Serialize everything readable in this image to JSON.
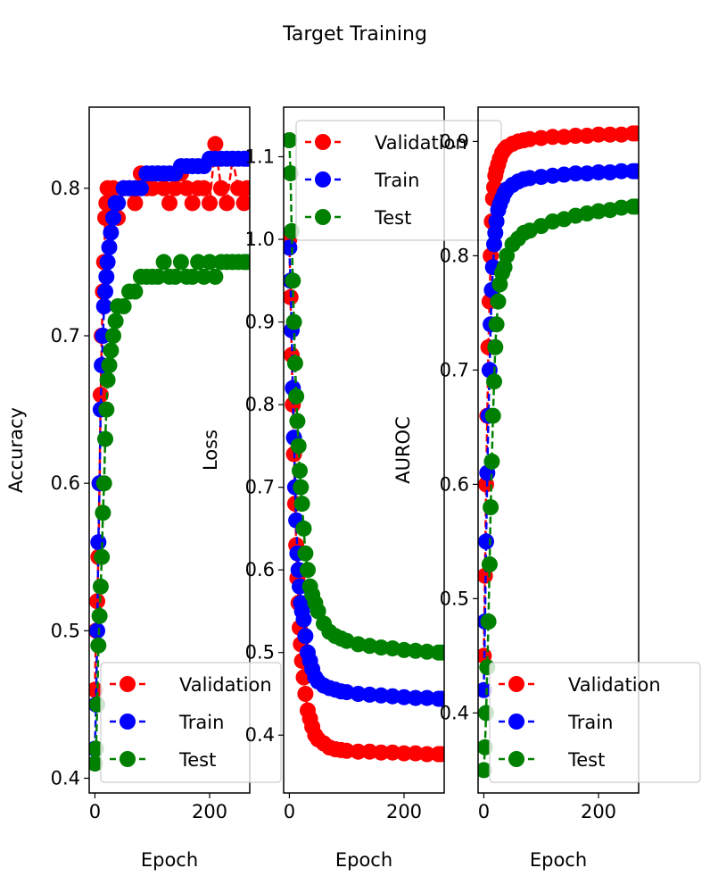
{
  "figure": {
    "title": "Target Training"
  },
  "colors": {
    "validation": "#ff0000",
    "train": "#0000ff",
    "test": "#008000"
  },
  "chart_data": [
    {
      "type": "line",
      "xlabel": "Epoch",
      "ylabel": "Accuracy",
      "xlim": [
        -10,
        270
      ],
      "ylim": [
        0.39,
        0.855
      ],
      "xticks": [
        0,
        200
      ],
      "yticks": [
        0.4,
        0.5,
        0.6,
        0.7,
        0.8
      ],
      "grid": false,
      "legend": "bottom-right",
      "series": [
        {
          "name": "Validation",
          "color": "#ff0000",
          "marker": "o",
          "linestyle": "dashed",
          "x": [
            0,
            2,
            4,
            6,
            8,
            10,
            12,
            14,
            16,
            18,
            20,
            22,
            25,
            28,
            32,
            36,
            40,
            50,
            60,
            70,
            80,
            90,
            100,
            110,
            120,
            130,
            140,
            150,
            160,
            170,
            180,
            190,
            200,
            210,
            220,
            230,
            240,
            250,
            260,
            265
          ],
          "y": [
            0.46,
            0.5,
            0.52,
            0.55,
            0.6,
            0.66,
            0.7,
            0.73,
            0.75,
            0.78,
            0.79,
            0.8,
            0.78,
            0.79,
            0.8,
            0.79,
            0.78,
            0.8,
            0.8,
            0.79,
            0.81,
            0.8,
            0.8,
            0.81,
            0.8,
            0.79,
            0.8,
            0.81,
            0.8,
            0.79,
            0.8,
            0.8,
            0.79,
            0.83,
            0.8,
            0.79,
            0.82,
            0.8,
            0.79,
            0.8
          ]
        },
        {
          "name": "Train",
          "color": "#0000ff",
          "marker": "o",
          "linestyle": "dashed",
          "x": [
            0,
            2,
            4,
            6,
            8,
            10,
            12,
            14,
            16,
            18,
            20,
            22,
            25,
            28,
            32,
            36,
            40,
            50,
            60,
            70,
            80,
            90,
            100,
            110,
            120,
            130,
            140,
            150,
            160,
            170,
            180,
            190,
            200,
            210,
            220,
            230,
            240,
            250,
            260,
            265
          ],
          "y": [
            0.42,
            0.45,
            0.5,
            0.56,
            0.6,
            0.65,
            0.68,
            0.7,
            0.72,
            0.73,
            0.74,
            0.75,
            0.76,
            0.77,
            0.78,
            0.79,
            0.79,
            0.8,
            0.8,
            0.8,
            0.8,
            0.81,
            0.81,
            0.81,
            0.81,
            0.81,
            0.81,
            0.815,
            0.815,
            0.815,
            0.815,
            0.815,
            0.82,
            0.82,
            0.82,
            0.82,
            0.82,
            0.82,
            0.82,
            0.82
          ]
        },
        {
          "name": "Test",
          "color": "#008000",
          "marker": "o",
          "linestyle": "dashed",
          "x": [
            0,
            2,
            4,
            6,
            8,
            10,
            12,
            14,
            16,
            18,
            20,
            22,
            25,
            28,
            32,
            36,
            40,
            50,
            60,
            70,
            80,
            90,
            100,
            110,
            120,
            130,
            140,
            150,
            160,
            170,
            180,
            190,
            200,
            210,
            220,
            230,
            240,
            250,
            260,
            265
          ],
          "y": [
            0.41,
            0.42,
            0.45,
            0.49,
            0.51,
            0.53,
            0.55,
            0.58,
            0.6,
            0.63,
            0.65,
            0.67,
            0.68,
            0.69,
            0.7,
            0.71,
            0.72,
            0.72,
            0.73,
            0.73,
            0.74,
            0.74,
            0.74,
            0.74,
            0.75,
            0.74,
            0.74,
            0.75,
            0.74,
            0.74,
            0.75,
            0.74,
            0.75,
            0.74,
            0.75,
            0.75,
            0.75,
            0.75,
            0.75,
            0.75
          ]
        }
      ]
    },
    {
      "type": "line",
      "xlabel": "Epoch",
      "ylabel": "Loss",
      "xlim": [
        -10,
        270
      ],
      "ylim": [
        0.33,
        1.16
      ],
      "xticks": [
        0,
        200
      ],
      "yticks": [
        0.4,
        0.5,
        0.6,
        0.7,
        0.8,
        0.9,
        1.0,
        1.1
      ],
      "grid": false,
      "legend": "top-right",
      "series": [
        {
          "name": "Validation",
          "color": "#ff0000",
          "marker": "o",
          "linestyle": "dashed",
          "x": [
            0,
            2,
            4,
            6,
            8,
            10,
            12,
            14,
            16,
            18,
            20,
            22,
            25,
            28,
            32,
            36,
            40,
            45,
            50,
            60,
            70,
            80,
            90,
            100,
            120,
            140,
            160,
            180,
            200,
            220,
            240,
            260,
            265
          ],
          "y": [
            1.0,
            0.93,
            0.86,
            0.8,
            0.74,
            0.68,
            0.63,
            0.59,
            0.56,
            0.53,
            0.51,
            0.49,
            0.47,
            0.45,
            0.43,
            0.42,
            0.41,
            0.4,
            0.395,
            0.39,
            0.385,
            0.383,
            0.382,
            0.381,
            0.38,
            0.38,
            0.379,
            0.379,
            0.378,
            0.378,
            0.377,
            0.377,
            0.377
          ]
        },
        {
          "name": "Train",
          "color": "#0000ff",
          "marker": "o",
          "linestyle": "dashed",
          "x": [
            0,
            2,
            4,
            6,
            8,
            10,
            12,
            14,
            16,
            18,
            20,
            22,
            25,
            28,
            32,
            36,
            40,
            45,
            50,
            60,
            70,
            80,
            90,
            100,
            120,
            140,
            160,
            180,
            200,
            220,
            240,
            260,
            265
          ],
          "y": [
            0.99,
            0.95,
            0.89,
            0.82,
            0.76,
            0.7,
            0.66,
            0.62,
            0.6,
            0.58,
            0.56,
            0.55,
            0.54,
            0.52,
            0.5,
            0.49,
            0.48,
            0.47,
            0.465,
            0.46,
            0.457,
            0.455,
            0.453,
            0.452,
            0.45,
            0.449,
            0.448,
            0.447,
            0.446,
            0.445,
            0.445,
            0.444,
            0.444
          ]
        },
        {
          "name": "Test",
          "color": "#008000",
          "marker": "o",
          "linestyle": "dashed",
          "x": [
            0,
            2,
            4,
            6,
            8,
            10,
            12,
            14,
            16,
            18,
            20,
            22,
            25,
            28,
            32,
            36,
            40,
            45,
            50,
            60,
            70,
            80,
            90,
            100,
            120,
            140,
            160,
            180,
            200,
            220,
            240,
            260,
            265
          ],
          "y": [
            1.12,
            1.08,
            1.01,
            0.95,
            0.9,
            0.85,
            0.81,
            0.78,
            0.75,
            0.72,
            0.7,
            0.68,
            0.65,
            0.62,
            0.6,
            0.58,
            0.57,
            0.56,
            0.55,
            0.535,
            0.525,
            0.52,
            0.517,
            0.514,
            0.51,
            0.508,
            0.506,
            0.505,
            0.503,
            0.502,
            0.501,
            0.5,
            0.5
          ]
        }
      ]
    },
    {
      "type": "line",
      "xlabel": "Epoch",
      "ylabel": "AUROC",
      "xlim": [
        -10,
        270
      ],
      "ylim": [
        0.33,
        0.93
      ],
      "xticks": [
        0,
        200
      ],
      "yticks": [
        0.4,
        0.5,
        0.6,
        0.7,
        0.8,
        0.9
      ],
      "grid": false,
      "legend": "bottom-right",
      "series": [
        {
          "name": "Validation",
          "color": "#ff0000",
          "marker": "o",
          "linestyle": "dashed",
          "x": [
            0,
            2,
            4,
            6,
            8,
            10,
            12,
            14,
            16,
            18,
            20,
            22,
            25,
            28,
            32,
            36,
            40,
            50,
            60,
            70,
            80,
            100,
            120,
            140,
            160,
            180,
            200,
            220,
            240,
            260,
            265
          ],
          "y": [
            0.45,
            0.52,
            0.6,
            0.66,
            0.72,
            0.76,
            0.8,
            0.83,
            0.85,
            0.86,
            0.87,
            0.875,
            0.88,
            0.885,
            0.89,
            0.893,
            0.895,
            0.898,
            0.9,
            0.901,
            0.902,
            0.903,
            0.904,
            0.904,
            0.905,
            0.905,
            0.906,
            0.906,
            0.906,
            0.907,
            0.907
          ]
        },
        {
          "name": "Train",
          "color": "#0000ff",
          "marker": "o",
          "linestyle": "dashed",
          "x": [
            0,
            2,
            4,
            6,
            8,
            10,
            12,
            14,
            16,
            18,
            20,
            22,
            25,
            28,
            32,
            36,
            40,
            50,
            60,
            70,
            80,
            100,
            120,
            140,
            160,
            180,
            200,
            220,
            240,
            260,
            265
          ],
          "y": [
            0.42,
            0.48,
            0.55,
            0.61,
            0.66,
            0.7,
            0.74,
            0.77,
            0.79,
            0.81,
            0.82,
            0.83,
            0.84,
            0.845,
            0.85,
            0.855,
            0.858,
            0.862,
            0.865,
            0.867,
            0.868,
            0.869,
            0.87,
            0.871,
            0.872,
            0.872,
            0.873,
            0.873,
            0.874,
            0.874,
            0.874
          ]
        },
        {
          "name": "Test",
          "color": "#008000",
          "marker": "o",
          "linestyle": "dashed",
          "x": [
            0,
            2,
            4,
            6,
            8,
            10,
            12,
            14,
            16,
            18,
            20,
            22,
            25,
            28,
            32,
            36,
            40,
            50,
            60,
            70,
            80,
            100,
            120,
            140,
            160,
            180,
            200,
            220,
            240,
            260,
            265
          ],
          "y": [
            0.35,
            0.37,
            0.4,
            0.44,
            0.48,
            0.53,
            0.58,
            0.62,
            0.66,
            0.69,
            0.72,
            0.74,
            0.76,
            0.775,
            0.785,
            0.79,
            0.8,
            0.81,
            0.815,
            0.82,
            0.822,
            0.826,
            0.83,
            0.832,
            0.835,
            0.837,
            0.839,
            0.84,
            0.842,
            0.843,
            0.843
          ]
        }
      ]
    }
  ]
}
